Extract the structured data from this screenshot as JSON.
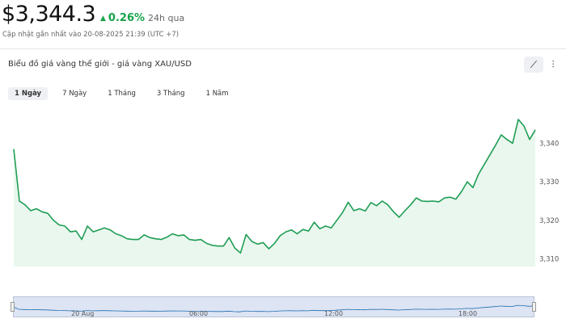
{
  "header": {
    "price": "$3,344.3",
    "change_arrow": "▲",
    "change_pct": "0.26%",
    "change_period": "24h qua",
    "updated": "Cập nhật gần nhất vào 20-08-2025 21:39 (UTC +7)"
  },
  "chart_title": "Biểu đồ giá vàng thế giới - giá vàng XAU/USD",
  "tools": [
    {
      "icon": "line-chart-icon",
      "glyph": "⟋"
    },
    {
      "icon": "candlestick-icon",
      "glyph": "⫶"
    }
  ],
  "tabs": [
    "1 Ngày",
    "7 Ngày",
    "1 Tháng",
    "3 Tháng",
    "1 Năm"
  ],
  "navigator": {
    "labels": [
      "20 Aug",
      "06:00",
      "12:00",
      "18:00"
    ]
  },
  "colors": {
    "line": "#1f9d55",
    "area": "#e9f7ee",
    "accent_up": "#16a34a"
  },
  "chart_data": {
    "type": "area",
    "y_ticks": [
      "3,310",
      "3,320",
      "3,330",
      "3,340"
    ],
    "ylim": [
      3308,
      3351
    ],
    "values": [
      3338.5,
      3325.0,
      3324.0,
      3322.5,
      3323.0,
      3322.2,
      3321.8,
      3320.0,
      3318.8,
      3318.5,
      3317.0,
      3317.2,
      3315.0,
      3318.5,
      3317.0,
      3317.5,
      3318.0,
      3317.5,
      3316.5,
      3316.0,
      3315.2,
      3315.0,
      3315.0,
      3316.2,
      3315.5,
      3315.2,
      3315.0,
      3315.6,
      3316.5,
      3316.0,
      3316.2,
      3315.0,
      3314.8,
      3315.0,
      3314.0,
      3313.5,
      3313.3,
      3313.3,
      3315.5,
      3312.8,
      3311.5,
      3316.3,
      3314.5,
      3313.8,
      3314.2,
      3312.6,
      3314.0,
      3316.0,
      3317.0,
      3317.5,
      3316.5,
      3317.6,
      3317.2,
      3319.5,
      3317.8,
      3318.5,
      3318.0,
      3320.0,
      3322.0,
      3324.7,
      3322.5,
      3323.0,
      3322.4,
      3324.6,
      3323.8,
      3325.0,
      3324.0,
      3322.2,
      3320.8,
      3322.5,
      3324.0,
      3325.8,
      3325.0,
      3324.9,
      3325.0,
      3324.8,
      3325.8,
      3326.0,
      3325.5,
      3327.5,
      3330.0,
      3328.5,
      3332.0,
      3334.5,
      3337.0,
      3339.5,
      3342.2,
      3341.0,
      3340.0,
      3346.2,
      3344.5,
      3341.0,
      3343.5
    ]
  }
}
